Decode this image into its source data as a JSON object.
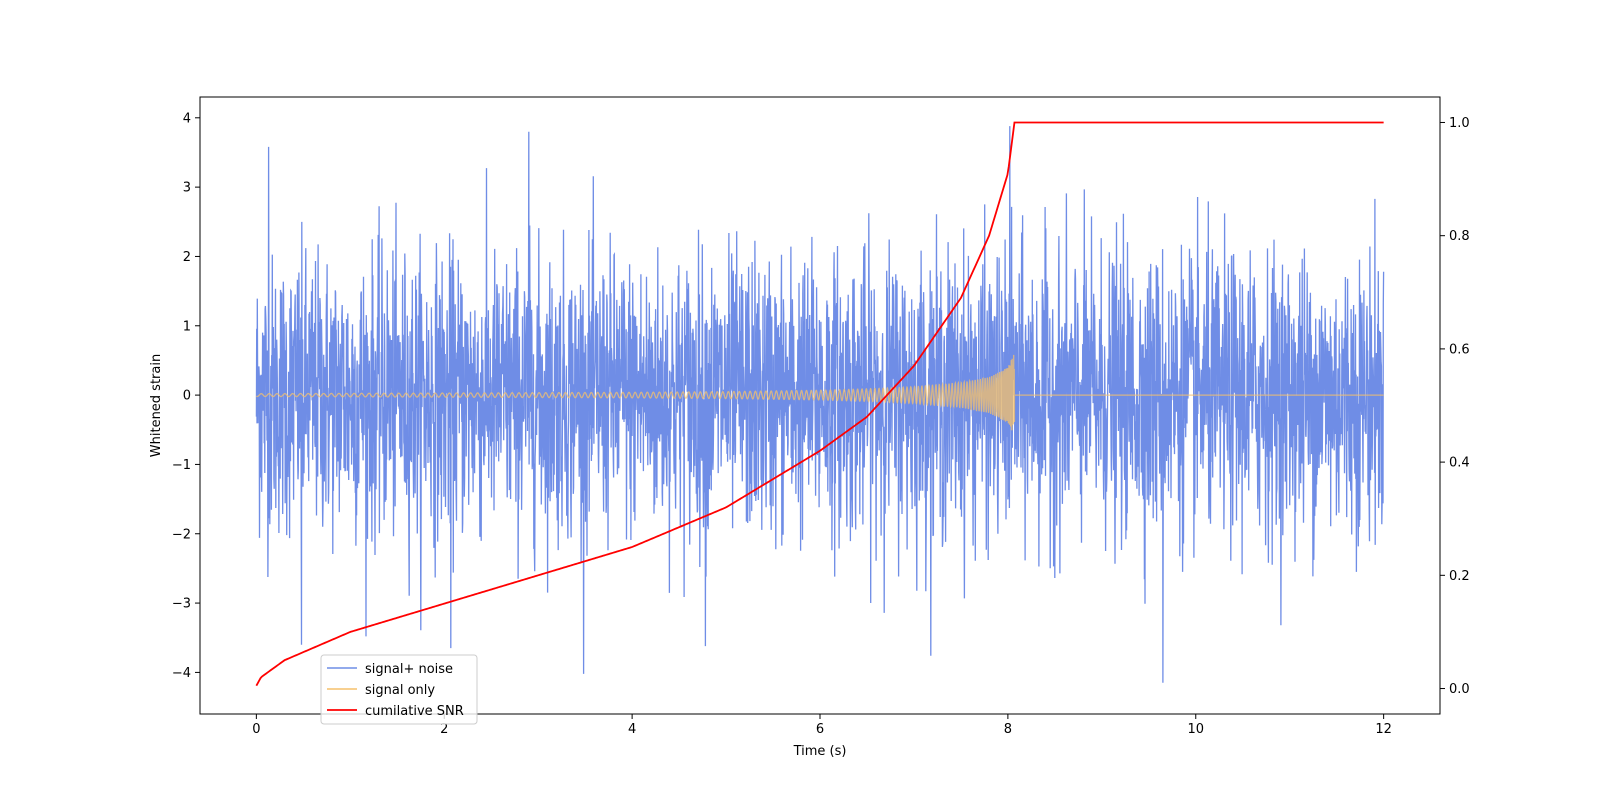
{
  "chart_data": {
    "type": "line",
    "xlabel": "Time (s)",
    "ylabel": "Whitened strain",
    "y2label": "",
    "xlim": [
      -0.6,
      12.6
    ],
    "ylim": [
      -4.6,
      4.3
    ],
    "y2lim": [
      -0.045,
      1.045
    ],
    "x_ticks": [
      0,
      2,
      4,
      6,
      8,
      10,
      12
    ],
    "y_ticks": [
      -4,
      -3,
      -2,
      -1,
      0,
      1,
      2,
      3,
      4
    ],
    "y2_ticks": [
      0.0,
      0.2,
      0.4,
      0.6,
      0.8,
      1.0
    ],
    "x_tick_labels": [
      "0",
      "2",
      "4",
      "6",
      "8",
      "10",
      "12"
    ],
    "y_tick_labels": [
      "−4",
      "−3",
      "−2",
      "−1",
      "0",
      "1",
      "2",
      "3",
      "4"
    ],
    "y2_tick_labels": [
      "0.0",
      "0.2",
      "0.4",
      "0.6",
      "0.8",
      "1.0"
    ],
    "legend_position": "lower-left",
    "grid": false,
    "series": [
      {
        "name": "signal+ noise",
        "axis": "left",
        "color": "#6f8de6",
        "x_range": [
          0,
          12
        ],
        "approx_amplitude": 1.0,
        "peak_max": 3.9,
        "peak_min": -4.15,
        "notable_points": [
          [
            0.13,
            3.58
          ],
          [
            2.9,
            3.8
          ],
          [
            8.02,
            3.88
          ],
          [
            9.65,
            -4.15
          ],
          [
            4.78,
            -3.62
          ],
          [
            0.48,
            -3.6
          ],
          [
            2.07,
            -3.65
          ]
        ]
      },
      {
        "name": "signal only",
        "axis": "left",
        "color": "#f5c16b",
        "x_range": [
          0,
          8.07
        ],
        "envelope": [
          [
            0,
            0.02
          ],
          [
            1,
            0.025
          ],
          [
            2,
            0.03
          ],
          [
            3,
            0.035
          ],
          [
            4,
            0.04
          ],
          [
            5,
            0.05
          ],
          [
            6,
            0.07
          ],
          [
            6.5,
            0.09
          ],
          [
            7,
            0.12
          ],
          [
            7.5,
            0.18
          ],
          [
            7.8,
            0.26
          ],
          [
            8.0,
            0.4
          ],
          [
            8.07,
            0.62
          ]
        ],
        "after_merger": 0.0
      },
      {
        "name": "cumilative SNR",
        "axis": "right",
        "color": "#ff0000",
        "points": [
          [
            0.0,
            0.005
          ],
          [
            0.05,
            0.02
          ],
          [
            0.3,
            0.05
          ],
          [
            1,
            0.1
          ],
          [
            2,
            0.15
          ],
          [
            3,
            0.2
          ],
          [
            4,
            0.25
          ],
          [
            5,
            0.32
          ],
          [
            6,
            0.42
          ],
          [
            6.5,
            0.48
          ],
          [
            7,
            0.57
          ],
          [
            7.5,
            0.69
          ],
          [
            7.8,
            0.8
          ],
          [
            8.0,
            0.91
          ],
          [
            8.07,
            1.0
          ],
          [
            12,
            1.0
          ]
        ]
      }
    ]
  }
}
